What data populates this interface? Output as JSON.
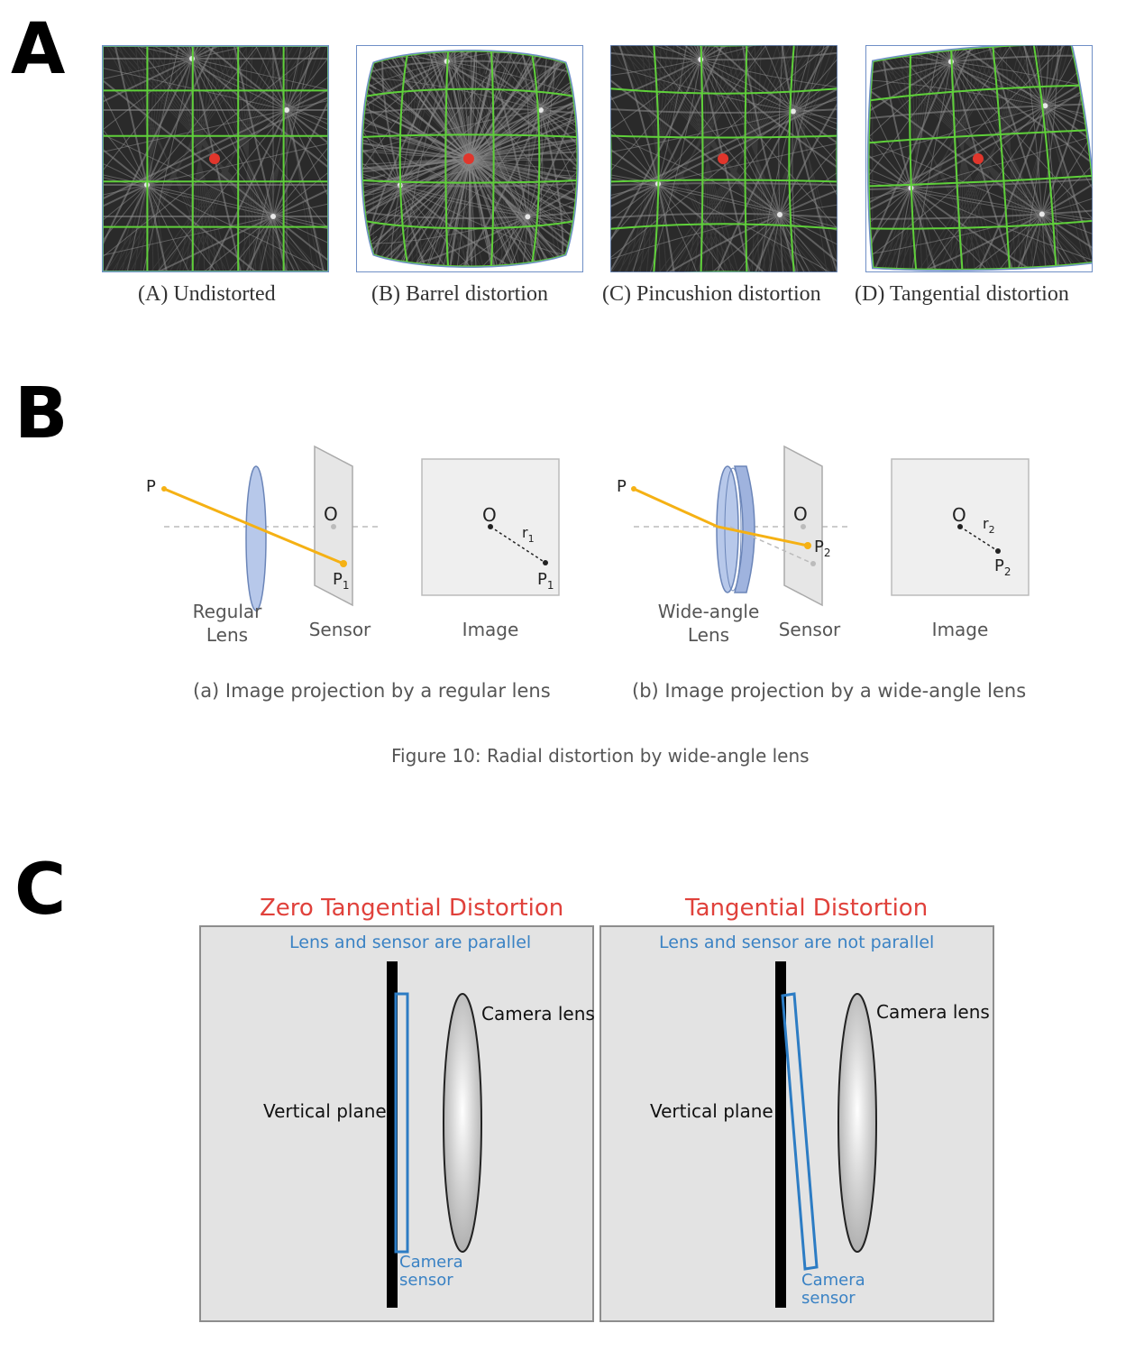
{
  "panels": {
    "a": "A",
    "b": "B",
    "c": "C"
  },
  "panel_a": {
    "captions": [
      "(A) Undistorted",
      "(B) Barrel distortion",
      "(C) Pincushion distortion",
      "(D) Tangential distortion"
    ],
    "grid_color": "#5fd03a",
    "dot_color": "#e0362c"
  },
  "panel_b": {
    "left": {
      "point_p": "P",
      "origin": "O",
      "p_label": "P",
      "p_sub": "1",
      "lens_label_1": "Regular",
      "lens_label_2": "Lens",
      "sensor_label": "Sensor",
      "image_label": "Image",
      "img_o": "O",
      "img_r": "r",
      "img_r_sub": "1",
      "img_p": "P",
      "img_p_sub": "1",
      "caption": "(a) Image projection by a regular lens"
    },
    "right": {
      "point_p": "P",
      "origin": "O",
      "p_label": "P",
      "p_sub": "2",
      "lens_label_1": "Wide-angle",
      "lens_label_2": "Lens",
      "sensor_label": "Sensor",
      "image_label": "Image",
      "img_o": "O",
      "img_r": "r",
      "img_r_sub": "2",
      "img_p": "P",
      "img_p_sub": "2",
      "caption": "(b) Image projection by a wide-angle lens"
    },
    "figure_caption": "Figure 10: Radial distortion by wide-angle lens",
    "ray_color": "#f5b114",
    "lens_color": "#b7c8ea"
  },
  "panel_c": {
    "left": {
      "title": "Zero Tangential Distortion",
      "subtitle": "Lens and sensor are parallel",
      "lens_label": "Camera lens",
      "plane_label": "Vertical plane",
      "sensor_label_1": "Camera",
      "sensor_label_2": "sensor"
    },
    "right": {
      "title": "Tangential Distortion",
      "subtitle": "Lens and sensor are not parallel",
      "lens_label": "Camera lens",
      "plane_label": "Vertical plane",
      "sensor_label_1": "Camera",
      "sensor_label_2": "sensor"
    },
    "title_color": "#e0413b",
    "subtitle_color": "#3a82c4"
  }
}
